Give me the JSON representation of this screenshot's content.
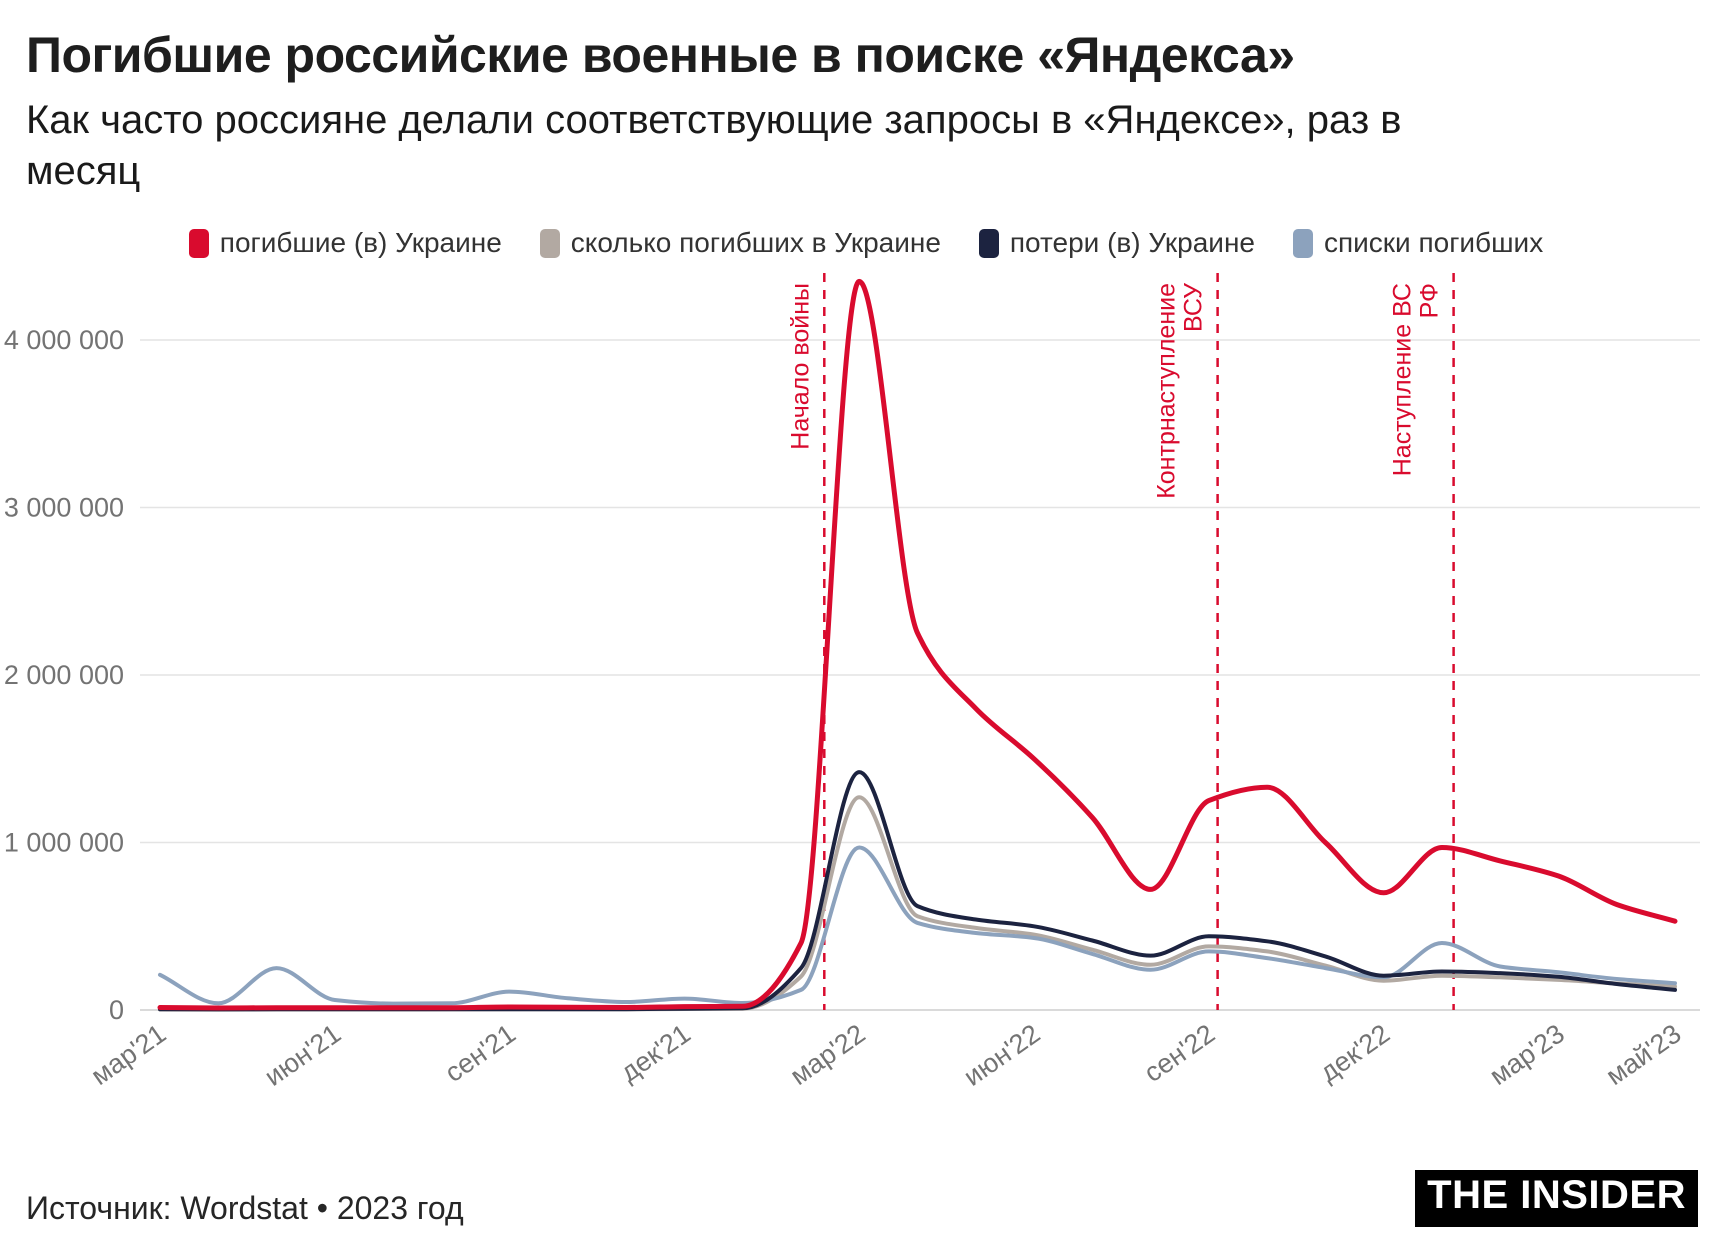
{
  "header": {
    "title": "Погибшие российские военные в поиске «Яндекса»",
    "subtitle": "Как часто россияне делали соответствующие запросы в «Яндексе», раз в месяц"
  },
  "legend": {
    "items": [
      {
        "label": "погибшие (в) Украине",
        "color": "#d90b2e"
      },
      {
        "label": "сколько погибших в Украине",
        "color": "#b2a9a2"
      },
      {
        "label": "потери (в) Украине",
        "color": "#1c2340"
      },
      {
        "label": "списки погибших",
        "color": "#8ca2bd"
      }
    ]
  },
  "footer": {
    "source": "Источник: Wordstat • 2023 год",
    "logo": "THE INSIDER"
  },
  "chart_data": {
    "type": "line",
    "title": "Погибшие российские военные в поиске «Яндекса»",
    "subtitle": "Как часто россияне делали соответствующие запросы в «Яндексе», раз в месяц",
    "x_months": [
      "мар'21",
      "апр'21",
      "май'21",
      "июн'21",
      "июл'21",
      "авг'21",
      "сен'21",
      "окт'21",
      "ноя'21",
      "дек'21",
      "янв'22",
      "фев'22",
      "мар'22",
      "апр'22",
      "май'22",
      "июн'22",
      "июл'22",
      "авг'22",
      "сен'22",
      "окт'22",
      "ноя'22",
      "дек'22",
      "янв'23",
      "фев'23",
      "мар'23",
      "апр'23",
      "май'23"
    ],
    "x_tick_indices": [
      0,
      3,
      6,
      9,
      12,
      15,
      18,
      21,
      24,
      26
    ],
    "x_tick_labels": [
      "мар'21",
      "июн'21",
      "сен'21",
      "дек'21",
      "мар'22",
      "июн'22",
      "сен'22",
      "дек'22",
      "мар'23",
      "май'23"
    ],
    "y_ticks": [
      {
        "value": 0,
        "label": "0"
      },
      {
        "value": 1000000,
        "label": "1 000 000"
      },
      {
        "value": 2000000,
        "label": "2 000 000"
      },
      {
        "value": 3000000,
        "label": "3 000 000"
      },
      {
        "value": 4000000,
        "label": "4 000 000"
      }
    ],
    "ylim": [
      0,
      4500000
    ],
    "grid": "horizontal",
    "legend_position": "top",
    "series": [
      {
        "name": "погибшие (в) Украине",
        "color": "#d90b2e",
        "width": 5,
        "values": [
          15000,
          12000,
          14000,
          13000,
          13000,
          14000,
          18000,
          16000,
          15000,
          20000,
          22000,
          400000,
          4350000,
          2250000,
          1800000,
          1500000,
          1150000,
          720000,
          1250000,
          1330000,
          1000000,
          700000,
          970000,
          890000,
          800000,
          630000,
          530000
        ]
      },
      {
        "name": "сколько погибших в Украине",
        "color": "#b2a9a2",
        "width": 4,
        "values": [
          3000,
          2500,
          3000,
          3000,
          3000,
          3500,
          4000,
          4000,
          4000,
          6000,
          8000,
          200000,
          1270000,
          560000,
          490000,
          450000,
          360000,
          270000,
          380000,
          350000,
          265000,
          175000,
          205000,
          195000,
          180000,
          158000,
          140000
        ]
      },
      {
        "name": "потери (в) Украине",
        "color": "#1c2340",
        "width": 4,
        "values": [
          4000,
          3500,
          4000,
          4000,
          4000,
          4500,
          5000,
          5000,
          5000,
          8000,
          10000,
          250000,
          1420000,
          620000,
          540000,
          500000,
          415000,
          325000,
          440000,
          410000,
          320000,
          205000,
          230000,
          220000,
          198000,
          155000,
          120000
        ]
      },
      {
        "name": "списки погибших",
        "color": "#8ca2bd",
        "width": 4,
        "values": [
          210000,
          40000,
          250000,
          60000,
          38000,
          40000,
          110000,
          70000,
          48000,
          68000,
          42000,
          120000,
          970000,
          520000,
          460000,
          430000,
          335000,
          240000,
          350000,
          310000,
          250000,
          195000,
          400000,
          260000,
          225000,
          185000,
          160000
        ]
      }
    ],
    "annotations": [
      {
        "lines": [
          "Начало войны"
        ],
        "month_index": 11.4,
        "color": "#d90b2e"
      },
      {
        "lines": [
          "Контрнаступление",
          "ВСУ"
        ],
        "month_index": 18.15,
        "color": "#d90b2e"
      },
      {
        "lines": [
          "Наступление ВС",
          "РФ"
        ],
        "month_index": 22.2,
        "color": "#d90b2e"
      }
    ]
  }
}
